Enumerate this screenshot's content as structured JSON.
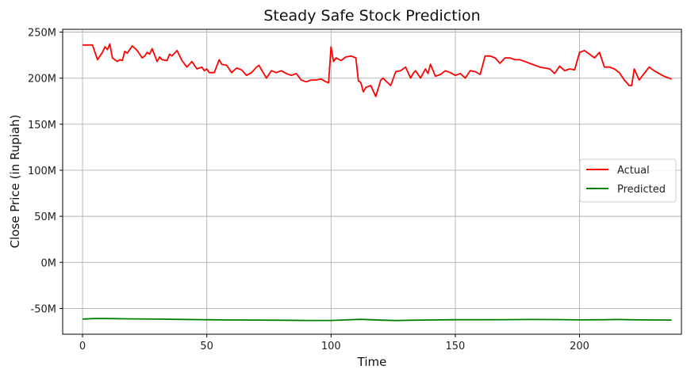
{
  "chart_data": {
    "type": "line",
    "title": "Steady Safe Stock Prediction",
    "xlabel": "Time",
    "ylabel": "Close Price (in Rupiah)",
    "xlim": [
      -8,
      241
    ],
    "ylim": [
      -78,
      253
    ],
    "xticks": [
      0,
      50,
      100,
      150,
      200
    ],
    "xtick_labels": [
      "0",
      "50",
      "100",
      "150",
      "200"
    ],
    "yticks": [
      -50,
      0,
      50,
      100,
      150,
      200,
      250
    ],
    "ytick_labels": [
      "-50M",
      "0M",
      "50M",
      "100M",
      "150M",
      "200M",
      "250M"
    ],
    "grid": true,
    "legend_position": "center-right",
    "series": [
      {
        "name": "Actual",
        "color": "#ff0000",
        "x": [
          0,
          4,
          6,
          8,
          9,
          10,
          11,
          12,
          14,
          15,
          16,
          17,
          18,
          20,
          22,
          24,
          25,
          26,
          27,
          28,
          30,
          31,
          32,
          34,
          35,
          36,
          38,
          40,
          42,
          44,
          46,
          48,
          49,
          50,
          51,
          53,
          55,
          56,
          58,
          60,
          62,
          64,
          66,
          68,
          70,
          71,
          72,
          74,
          76,
          78,
          80,
          82,
          84,
          86,
          88,
          90,
          92,
          94,
          96,
          98,
          99,
          100,
          101,
          102,
          104,
          106,
          108,
          110,
          111,
          112,
          113,
          114,
          116,
          118,
          120,
          121,
          122,
          124,
          126,
          128,
          130,
          132,
          133,
          134,
          136,
          138,
          139,
          140,
          142,
          144,
          146,
          148,
          150,
          152,
          154,
          156,
          158,
          160,
          162,
          164,
          166,
          168,
          170,
          172,
          174,
          176,
          178,
          180,
          182,
          184,
          186,
          188,
          190,
          192,
          194,
          196,
          198,
          200,
          202,
          204,
          206,
          208,
          210,
          212,
          214,
          216,
          218,
          220,
          221,
          222,
          224,
          226,
          228,
          230,
          232,
          234,
          236,
          237
        ],
        "values": [
          236,
          236,
          220,
          228,
          234,
          231,
          237,
          222,
          218,
          220,
          219,
          229,
          227,
          235,
          230,
          222,
          224,
          228,
          226,
          232,
          218,
          223,
          220,
          219,
          226,
          224,
          230,
          219,
          212,
          218,
          210,
          212,
          208,
          210,
          206,
          206,
          220,
          215,
          214,
          206,
          211,
          209,
          203,
          206,
          212,
          214,
          209,
          200,
          208,
          206,
          208,
          205,
          203,
          205,
          198,
          196,
          198,
          198,
          199,
          196,
          195,
          234,
          218,
          222,
          219,
          223,
          224,
          222,
          197,
          195,
          185,
          190,
          192,
          180,
          198,
          200,
          197,
          192,
          207,
          208,
          212,
          200,
          205,
          208,
          200,
          210,
          205,
          215,
          202,
          204,
          208,
          206,
          203,
          205,
          200,
          208,
          207,
          204,
          224,
          224,
          222,
          216,
          222,
          222,
          220,
          220,
          218,
          216,
          214,
          212,
          211,
          210,
          205,
          213,
          208,
          210,
          209,
          228,
          230,
          226,
          222,
          228,
          212,
          212,
          210,
          206,
          198,
          192,
          192,
          210,
          198,
          205,
          212,
          208,
          205,
          202,
          200,
          199
        ]
      },
      {
        "name": "Predicted",
        "color": "#008000",
        "x": [
          0,
          5,
          10,
          20,
          30,
          40,
          50,
          60,
          70,
          80,
          90,
          100,
          105,
          112,
          120,
          126,
          132,
          140,
          150,
          160,
          170,
          180,
          190,
          200,
          210,
          215,
          220,
          225,
          237
        ],
        "values": [
          -61.5,
          -61,
          -61,
          -61.3,
          -61.6,
          -61.9,
          -62.3,
          -62.5,
          -62.6,
          -62.8,
          -63,
          -63,
          -62.5,
          -61.8,
          -62.7,
          -63.1,
          -62.8,
          -62.5,
          -62.3,
          -62.3,
          -62.2,
          -62,
          -62.1,
          -62.4,
          -62.3,
          -62,
          -62.3,
          -62.4,
          -62.6
        ]
      }
    ]
  }
}
